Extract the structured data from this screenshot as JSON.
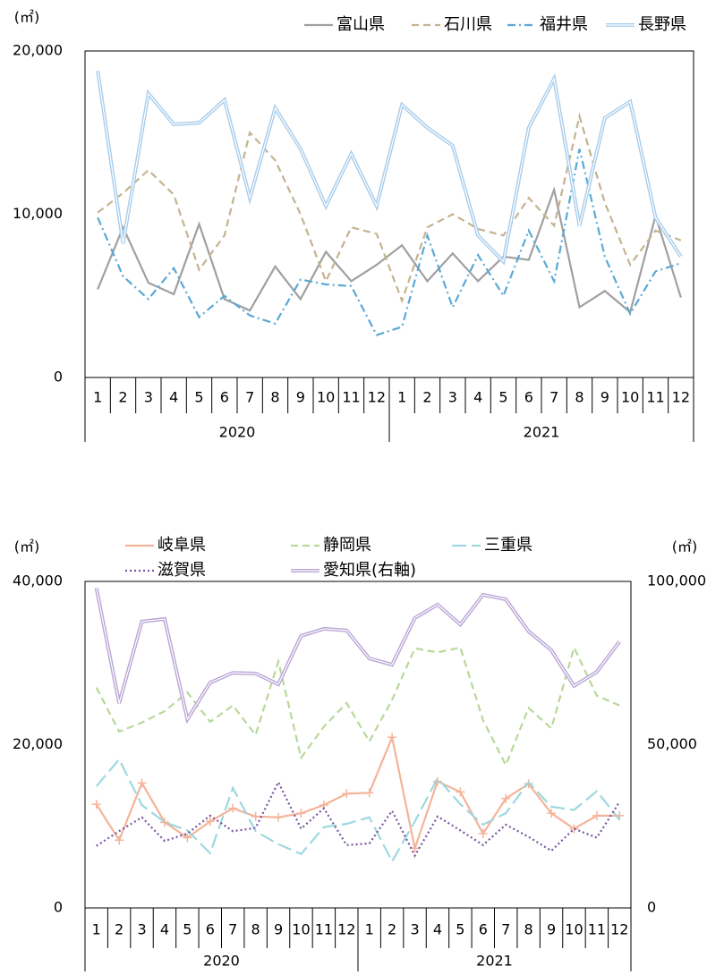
{
  "chart_data": [
    {
      "type": "line",
      "y_unit_label": "(㎡)",
      "categories": [
        "1",
        "2",
        "3",
        "4",
        "5",
        "6",
        "7",
        "8",
        "9",
        "10",
        "11",
        "12",
        "1",
        "2",
        "3",
        "4",
        "5",
        "6",
        "7",
        "8",
        "9",
        "10",
        "11",
        "12"
      ],
      "x_groups": [
        "2020",
        "2021"
      ],
      "ylim": [
        0,
        20000
      ],
      "yticks": [
        0,
        {
          "value": 10000,
          "label": "10,000"
        },
        {
          "value": 20000,
          "label": "20,000"
        }
      ],
      "grid": false,
      "series": [
        {
          "name": "富山県",
          "color": "#a0a0a0",
          "style": "solid",
          "values": [
            5400,
            9200,
            5800,
            5100,
            9400,
            4800,
            4100,
            6800,
            4800,
            7700,
            5900,
            6900,
            8100,
            5900,
            7600,
            5900,
            7400,
            7200,
            11500,
            4300,
            5300,
            4000,
            9900,
            4900
          ]
        },
        {
          "name": "石川県",
          "color": "#c4b38f",
          "style": "dashed",
          "values": [
            10100,
            11300,
            12700,
            11200,
            6600,
            8700,
            15000,
            13300,
            10000,
            5900,
            9200,
            8800,
            4700,
            9200,
            10000,
            9100,
            8700,
            11000,
            9300,
            16000,
            10700,
            6900,
            9000,
            8400
          ]
        },
        {
          "name": "福井県",
          "color": "#5aa9d6",
          "style": "dashdot",
          "values": [
            9800,
            6200,
            4800,
            6700,
            3700,
            5000,
            3800,
            3300,
            6000,
            5700,
            5600,
            2600,
            3100,
            8700,
            4300,
            7500,
            5000,
            9000,
            5900,
            14000,
            7400,
            3900,
            6500,
            7000
          ]
        },
        {
          "name": "長野県",
          "color": "#a8cdec",
          "style": "double",
          "values": [
            18800,
            8200,
            17400,
            15500,
            15600,
            17000,
            11000,
            16500,
            14000,
            10500,
            13700,
            10500,
            16700,
            15300,
            14200,
            8700,
            7100,
            15300,
            18300,
            9300,
            15900,
            16900,
            9800,
            7400
          ]
        }
      ]
    },
    {
      "type": "line",
      "y_unit_label": "(㎡)",
      "y2_unit_label": "(㎡)",
      "categories": [
        "1",
        "2",
        "3",
        "4",
        "5",
        "6",
        "7",
        "8",
        "9",
        "10",
        "11",
        "12",
        "1",
        "2",
        "3",
        "4",
        "5",
        "6",
        "7",
        "8",
        "9",
        "10",
        "11",
        "12"
      ],
      "x_groups": [
        "2020",
        "2021"
      ],
      "ylim": [
        0,
        40000
      ],
      "yticks": [
        0,
        {
          "value": 20000,
          "label": "20,000"
        },
        {
          "value": 40000,
          "label": "40,000"
        }
      ],
      "y2lim": [
        0,
        100000
      ],
      "y2ticks": [
        0,
        {
          "value": 50000,
          "label": "50,000"
        },
        {
          "value": 100000,
          "label": "100,000"
        }
      ],
      "grid": false,
      "series": [
        {
          "name": "岐阜県",
          "color": "#f4b49a",
          "style": "plus",
          "values": [
            12700,
            8300,
            15300,
            10500,
            8600,
            10600,
            12200,
            11200,
            11100,
            11600,
            12600,
            14000,
            14100,
            20900,
            7300,
            15500,
            14200,
            9100,
            13400,
            15200,
            11600,
            9700,
            11300,
            11300
          ]
        },
        {
          "name": "静岡県",
          "color": "#b8d89a",
          "style": "dashed",
          "values": [
            27000,
            21600,
            22700,
            24100,
            26400,
            22800,
            24800,
            21200,
            30200,
            18400,
            22200,
            25100,
            20400,
            25500,
            31800,
            31300,
            31900,
            23000,
            17500,
            24500,
            22000,
            31900,
            26000,
            24800
          ]
        },
        {
          "name": "三重県",
          "color": "#9ed8e0",
          "style": "longdash",
          "values": [
            14900,
            18200,
            12600,
            10500,
            9500,
            6700,
            14700,
            9400,
            7800,
            6600,
            9900,
            10300,
            11100,
            5700,
            10600,
            15900,
            12700,
            10200,
            11600,
            15400,
            12400,
            12000,
            14300,
            10800
          ]
        },
        {
          "name": "滋賀県",
          "color": "#7a55a0",
          "style": "dotted",
          "values": [
            7600,
            9400,
            11100,
            8200,
            9100,
            11300,
            9400,
            9800,
            15400,
            9700,
            12200,
            7700,
            7900,
            11900,
            6400,
            11200,
            9500,
            7700,
            10200,
            8700,
            7000,
            9700,
            8600,
            13000
          ]
        },
        {
          "name": "愛知県(右軸)",
          "color": "#b9a6d6",
          "style": "double",
          "axis": "y2",
          "values": [
            98000,
            62700,
            87700,
            88500,
            57800,
            69000,
            72000,
            71800,
            68500,
            83300,
            85500,
            85000,
            76400,
            74500,
            88800,
            92900,
            86800,
            95900,
            94500,
            84700,
            78900,
            68000,
            72300,
            81600
          ]
        }
      ]
    }
  ]
}
